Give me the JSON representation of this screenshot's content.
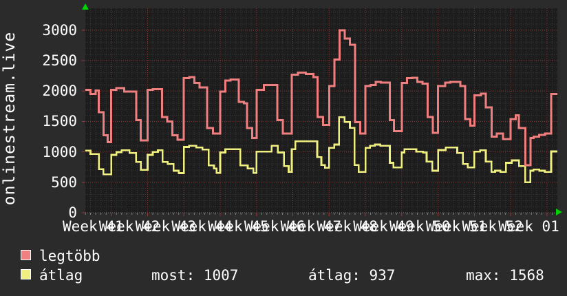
{
  "chart_data": {
    "type": "line",
    "subtype": "step",
    "title": "onlinestream.live",
    "background": "#2b2b2b",
    "plot_background": "#1d1d1d",
    "grid_minor_color": "#3a3a3a",
    "grid_major_color": "#9a3636",
    "axis_arrow_color": "#00d400",
    "text_color": "#ffffff",
    "ylim": [
      0,
      3360
    ],
    "y_ticks": [
      0,
      500,
      1000,
      1500,
      2000,
      2500,
      3000
    ],
    "y_minor_step": 100,
    "total_days": 91,
    "monday_days": [
      5,
      12,
      19,
      26,
      33,
      40,
      47,
      54,
      61,
      68,
      75,
      82,
      89
    ],
    "x_ticks": [
      {
        "label": "Week 41",
        "center_day": 1.5
      },
      {
        "label": "Week 42",
        "center_day": 8.5
      },
      {
        "label": "Week 43",
        "center_day": 15.5
      },
      {
        "label": "Week 44",
        "center_day": 22.5
      },
      {
        "label": "Week 45",
        "center_day": 29.5
      },
      {
        "label": "Week 46",
        "center_day": 36.5
      },
      {
        "label": "Week 47",
        "center_day": 43.5
      },
      {
        "label": "Week 48",
        "center_day": 50.5
      },
      {
        "label": "Week 49",
        "center_day": 57.5
      },
      {
        "label": "Week 50",
        "center_day": 64.5
      },
      {
        "label": "Week 51",
        "center_day": 71.5
      },
      {
        "label": "Week 52",
        "center_day": 78.5
      },
      {
        "label": "Week 01",
        "center_day": 85.5
      }
    ],
    "series": [
      {
        "name": "átlag",
        "color": "#f0f080",
        "width": 2.6,
        "steps": [
          [
            0,
            1020
          ],
          [
            1,
            965
          ],
          [
            2.6,
            715
          ],
          [
            3.5,
            630
          ],
          [
            5,
            950
          ],
          [
            6,
            995
          ],
          [
            7,
            1025
          ],
          [
            8.5,
            980
          ],
          [
            9.8,
            835
          ],
          [
            10.7,
            705
          ],
          [
            12,
            950
          ],
          [
            13,
            1000
          ],
          [
            14,
            1025
          ],
          [
            14.9,
            835
          ],
          [
            15.9,
            800
          ],
          [
            17,
            690
          ],
          [
            18,
            650
          ],
          [
            19,
            1080
          ],
          [
            20,
            1100
          ],
          [
            21.4,
            1070
          ],
          [
            22.6,
            1040
          ],
          [
            23.8,
            780
          ],
          [
            24.8,
            725
          ],
          [
            25.3,
            655
          ],
          [
            26,
            990
          ],
          [
            27,
            1045
          ],
          [
            29.9,
            780
          ],
          [
            31.3,
            725
          ],
          [
            32.4,
            655
          ],
          [
            33,
            1005
          ],
          [
            35.9,
            1100
          ],
          [
            37.1,
            990
          ],
          [
            38.3,
            765
          ],
          [
            39.2,
            670
          ],
          [
            39.8,
            1045
          ],
          [
            40.5,
            1175
          ],
          [
            44.7,
            915
          ],
          [
            45.5,
            785
          ],
          [
            46.2,
            740
          ],
          [
            47,
            1065
          ],
          [
            48,
            1120
          ],
          [
            48.9,
            1568
          ],
          [
            50,
            1490
          ],
          [
            51,
            1395
          ],
          [
            51.9,
            785
          ],
          [
            52.7,
            670
          ],
          [
            54,
            1065
          ],
          [
            54.9,
            1100
          ],
          [
            55.8,
            1120
          ],
          [
            56.9,
            1100
          ],
          [
            58.7,
            820
          ],
          [
            59.4,
            745
          ],
          [
            61,
            990
          ],
          [
            61.5,
            1045
          ],
          [
            63.8,
            1005
          ],
          [
            65.1,
            990
          ],
          [
            65.8,
            840
          ],
          [
            66.9,
            690
          ],
          [
            68,
            1030
          ],
          [
            69.5,
            1070
          ],
          [
            71.7,
            980
          ],
          [
            72.8,
            800
          ],
          [
            73.7,
            745
          ],
          [
            75,
            1005
          ],
          [
            76.1,
            1025
          ],
          [
            77.2,
            840
          ],
          [
            78.3,
            670
          ],
          [
            79,
            690
          ],
          [
            80,
            670
          ],
          [
            81.1,
            820
          ],
          [
            82.2,
            860
          ],
          [
            83.6,
            765
          ],
          [
            84.8,
            500
          ],
          [
            85.8,
            690
          ],
          [
            86.4,
            710
          ],
          [
            87.5,
            690
          ],
          [
            88.6,
            670
          ],
          [
            89.8,
            1007
          ]
        ]
      },
      {
        "name": "legtöbb",
        "color": "#f08080",
        "width": 3,
        "steps": [
          [
            0,
            2020
          ],
          [
            1,
            1950
          ],
          [
            2,
            2010
          ],
          [
            2.6,
            1650
          ],
          [
            3.5,
            1270
          ],
          [
            4.3,
            1160
          ],
          [
            5,
            2020
          ],
          [
            6,
            2050
          ],
          [
            7.5,
            1990
          ],
          [
            9.8,
            1520
          ],
          [
            10.7,
            1190
          ],
          [
            12,
            2020
          ],
          [
            13,
            2030
          ],
          [
            14.8,
            1570
          ],
          [
            15.8,
            1500
          ],
          [
            16.8,
            1270
          ],
          [
            17.8,
            1200
          ],
          [
            19,
            2210
          ],
          [
            20,
            2230
          ],
          [
            21,
            2130
          ],
          [
            22,
            2060
          ],
          [
            23.5,
            1390
          ],
          [
            24.6,
            1300
          ],
          [
            26,
            1990
          ],
          [
            27,
            2170
          ],
          [
            28,
            2190
          ],
          [
            29.6,
            1820
          ],
          [
            30.6,
            1800
          ],
          [
            31.2,
            1390
          ],
          [
            32.2,
            1230
          ],
          [
            33,
            2020
          ],
          [
            34.4,
            2100
          ],
          [
            37,
            1520
          ],
          [
            38.1,
            1300
          ],
          [
            39.8,
            2270
          ],
          [
            41,
            2300
          ],
          [
            42.5,
            2280
          ],
          [
            44,
            2230
          ],
          [
            44.8,
            1570
          ],
          [
            45.8,
            1440
          ],
          [
            47,
            2080
          ],
          [
            48,
            2520
          ],
          [
            49,
            3000
          ],
          [
            50,
            2860
          ],
          [
            51,
            2760
          ],
          [
            52,
            1490
          ],
          [
            53,
            1300
          ],
          [
            54,
            2080
          ],
          [
            55,
            2100
          ],
          [
            56,
            2150
          ],
          [
            57,
            2140
          ],
          [
            58.7,
            1520
          ],
          [
            59.5,
            1340
          ],
          [
            61,
            2130
          ],
          [
            62,
            2210
          ],
          [
            63,
            2220
          ],
          [
            64,
            2150
          ],
          [
            65,
            2120
          ],
          [
            66,
            1570
          ],
          [
            67,
            1310
          ],
          [
            68,
            2080
          ],
          [
            69.4,
            2140
          ],
          [
            70.4,
            2150
          ],
          [
            72.3,
            2080
          ],
          [
            73.2,
            1540
          ],
          [
            74.2,
            1430
          ],
          [
            75,
            1930
          ],
          [
            76.3,
            1960
          ],
          [
            77.2,
            1730
          ],
          [
            78.3,
            1250
          ],
          [
            79.3,
            1300
          ],
          [
            80.5,
            1210
          ],
          [
            82,
            1540
          ],
          [
            83,
            1600
          ],
          [
            83.6,
            1390
          ],
          [
            84.8,
            780
          ],
          [
            85.8,
            1230
          ],
          [
            86.4,
            1250
          ],
          [
            87.5,
            1280
          ],
          [
            88.6,
            1300
          ],
          [
            89.8,
            1950
          ]
        ]
      }
    ],
    "legend_position": "bottom-left"
  },
  "legend": {
    "items": [
      {
        "label": "legtöbb",
        "color": "#f08080"
      },
      {
        "label": "átlag",
        "color": "#f0f080"
      }
    ],
    "stats": [
      {
        "label": "most:",
        "value": "1007"
      },
      {
        "label": "átlag:",
        "value": "937"
      },
      {
        "label": "max:",
        "value": "1568"
      }
    ]
  }
}
